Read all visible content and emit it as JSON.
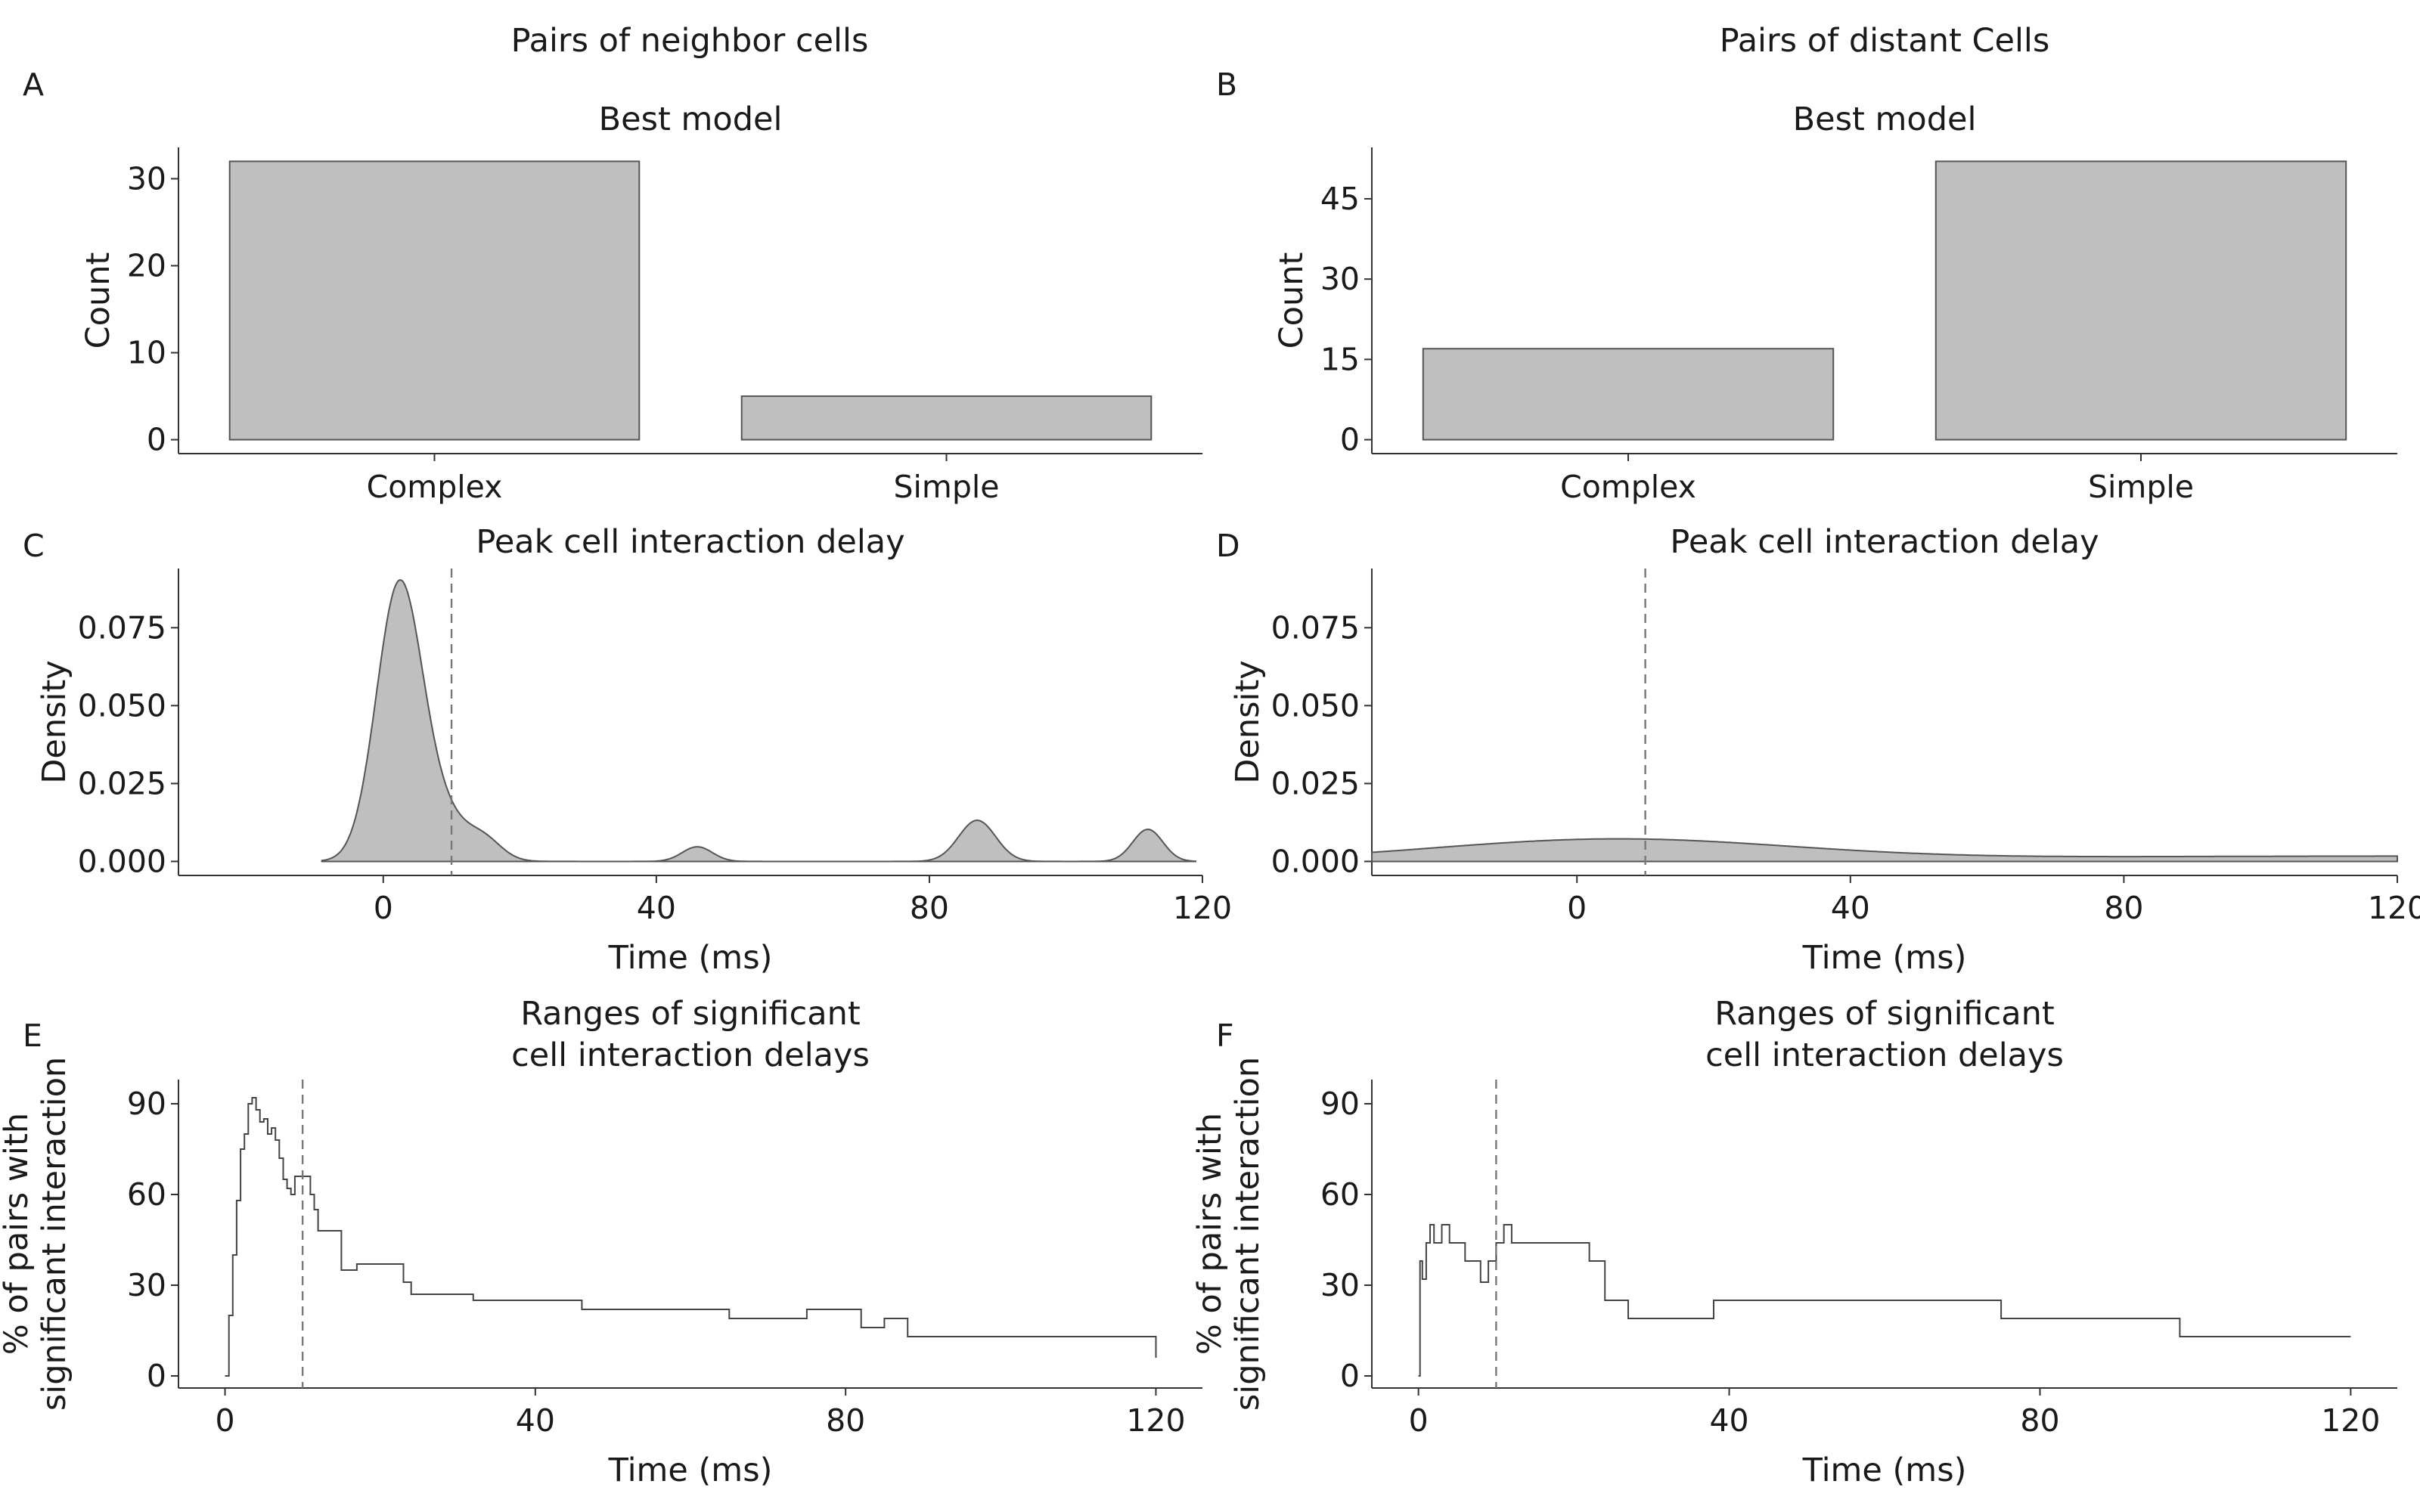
{
  "figure": {
    "left_title": "Pairs of neighbor cells",
    "right_title": "Pairs of distant Cells"
  },
  "colors": {
    "fill": "#bfbfbf",
    "stroke": "#555555",
    "dash": "#777777"
  },
  "chart_data": [
    {
      "panel": "A",
      "type": "bar",
      "title": "Best model",
      "xlabel": "",
      "ylabel": "Count",
      "categories": [
        "Complex",
        "Simple"
      ],
      "values": [
        32,
        5
      ],
      "ylim": [
        -1.6,
        33.6
      ],
      "yticks": [
        0,
        10,
        20,
        30
      ],
      "grid": false
    },
    {
      "panel": "B",
      "type": "bar",
      "title": "Best model",
      "xlabel": "",
      "ylabel": "Count",
      "categories": [
        "Complex",
        "Simple"
      ],
      "values": [
        17,
        52
      ],
      "ylim": [
        -2.6,
        54.6
      ],
      "yticks": [
        0,
        15,
        30,
        45
      ],
      "grid": false
    },
    {
      "panel": "C",
      "type": "area",
      "title": "Peak cell interaction delay",
      "xlabel": "Time (ms)",
      "ylabel": "Density",
      "xlim": [
        -30,
        120
      ],
      "ylim": [
        -0.0045,
        0.094
      ],
      "xticks": [
        0,
        40,
        80,
        120
      ],
      "yticks": [
        0,
        0.025,
        0.05,
        0.075
      ],
      "ytick_labels": [
        "0.000",
        "0.025",
        "0.050",
        "0.075"
      ],
      "vline": 10,
      "x_range": [
        -9,
        119
      ],
      "components": [
        {
          "mu": 2.2,
          "sigma": 3.3,
          "amp": 0.0818
        },
        {
          "mu": 7.5,
          "sigma": 4.5,
          "amp": 0.0165
        },
        {
          "mu": 15,
          "sigma": 2.5,
          "amp": 0.0048
        },
        {
          "mu": 46,
          "sigma": 2.2,
          "amp": 0.0047
        },
        {
          "mu": 87,
          "sigma": 2.7,
          "amp": 0.0132
        },
        {
          "mu": 112,
          "sigma": 2.2,
          "amp": 0.0103
        }
      ]
    },
    {
      "panel": "D",
      "type": "area",
      "title": "Peak cell interaction delay",
      "xlabel": "Time (ms)",
      "ylabel": "Density",
      "xlim": [
        -30,
        120
      ],
      "ylim": [
        -0.0045,
        0.094
      ],
      "xticks": [
        0,
        40,
        80,
        120
      ],
      "yticks": [
        0,
        0.025,
        0.05,
        0.075
      ],
      "ytick_labels": [
        "0.000",
        "0.025",
        "0.050",
        "0.075"
      ],
      "vline": 10,
      "x_range": [
        -30,
        120
      ],
      "components": [
        {
          "mu": 5,
          "sigma": 26,
          "amp": 0.0068
        },
        {
          "mu": 120,
          "sigma": 70,
          "amp": 0.0017
        }
      ]
    },
    {
      "panel": "E",
      "type": "line",
      "title": "Ranges of significant cell interaction delays",
      "title_lines": [
        "Ranges of significant",
        "cell interaction delays"
      ],
      "xlabel": "Time (ms)",
      "ylabel_lines": [
        "% of pairs with",
        "significant interaction"
      ],
      "xlim": [
        -6,
        126
      ],
      "ylim": [
        -4,
        98
      ],
      "xticks": [
        0,
        40,
        80,
        120
      ],
      "yticks": [
        0,
        30,
        60,
        90
      ],
      "vline": 10,
      "x": [
        0,
        0.5,
        1,
        1.5,
        2,
        2.5,
        3,
        3.5,
        4,
        4.5,
        5,
        5.5,
        6,
        6.5,
        7,
        7.5,
        8,
        8.5,
        9,
        10,
        11,
        11.5,
        12,
        15,
        17,
        23,
        24,
        32,
        46,
        65,
        75,
        82,
        85,
        88,
        112,
        120
      ],
      "y": [
        0,
        20,
        40,
        58,
        75,
        80,
        90,
        92,
        88,
        84,
        85,
        80,
        82,
        78,
        72,
        65,
        62,
        60,
        66,
        66,
        60,
        55,
        48,
        35,
        37,
        31,
        27,
        25,
        22,
        19,
        22,
        16,
        19,
        13,
        13,
        6
      ]
    },
    {
      "panel": "F",
      "type": "line",
      "title": "Ranges of significant cell interaction delays",
      "title_lines": [
        "Ranges of significant",
        "cell interaction delays"
      ],
      "xlabel": "Time (ms)",
      "ylabel_lines": [
        "% of pairs with",
        "significant interaction"
      ],
      "xlim": [
        -6,
        126
      ],
      "ylim": [
        -4,
        98
      ],
      "xticks": [
        0,
        40,
        80,
        120
      ],
      "yticks": [
        0,
        30,
        60,
        90
      ],
      "vline": 10,
      "x": [
        0,
        0.2,
        0.5,
        1,
        1.5,
        2,
        3,
        4,
        6,
        8,
        9,
        10,
        11,
        12,
        14,
        16,
        18,
        20,
        22,
        24,
        27,
        38,
        75,
        98,
        120
      ],
      "y": [
        0,
        38,
        32,
        44,
        50,
        44,
        50,
        44,
        38,
        31,
        38,
        44,
        50,
        44,
        44,
        44,
        44,
        44,
        38,
        25,
        19,
        25,
        19,
        13,
        13
      ]
    }
  ]
}
